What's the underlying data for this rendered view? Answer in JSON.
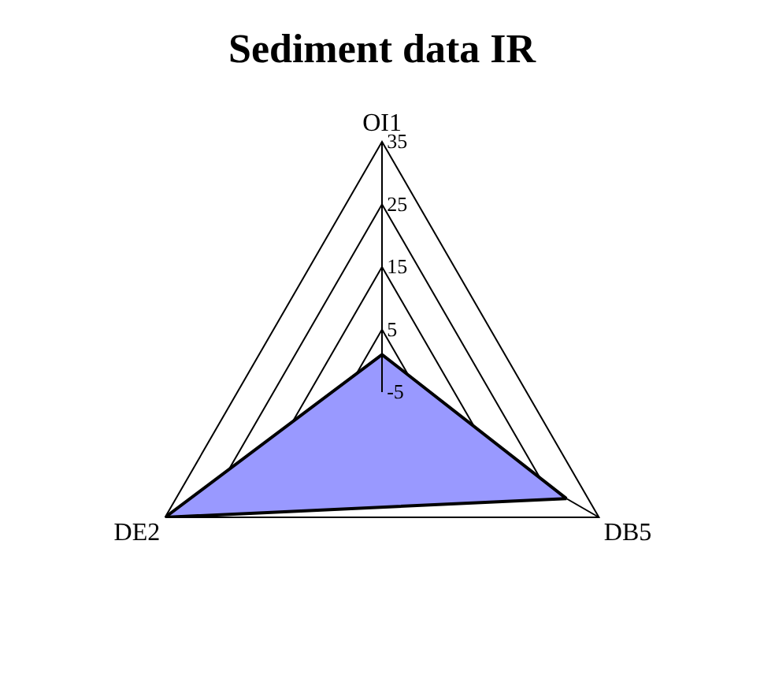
{
  "chart_data": {
    "type": "radar",
    "title": "Sediment data IR",
    "categories": [
      "OI1",
      "DB5",
      "DE2"
    ],
    "series": [
      {
        "color": "#9999ff",
        "values": [
          1,
          29,
          35
        ]
      }
    ],
    "ylim": [
      -5,
      35
    ],
    "yticks": [
      -5,
      5,
      15,
      25,
      35
    ],
    "grid": true,
    "marker": "none",
    "line_style": "solid"
  }
}
